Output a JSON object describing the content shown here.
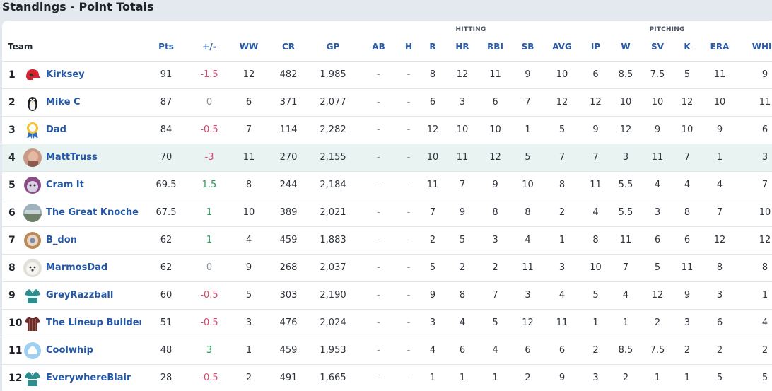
{
  "page": {
    "title": "Standings - Point Totals"
  },
  "groups": {
    "hitting": "HITTING",
    "pitching": "PITCHING"
  },
  "columns": [
    "Team",
    "Pts",
    "+/-",
    "WW",
    "CR",
    "GP",
    "AB",
    "H",
    "R",
    "HR",
    "RBI",
    "SB",
    "AVG",
    "IP",
    "W",
    "SV",
    "K",
    "ERA",
    "WHIP"
  ],
  "rows": [
    {
      "rank": "1",
      "team": "Kirksey",
      "icon": "red-helmet-icon",
      "pts": "91",
      "pm": "-1.5",
      "ww": "12",
      "cr": "482",
      "gp": "1,985",
      "ab": "-",
      "h": "-",
      "r": "8",
      "hr": "12",
      "rbi": "11",
      "sb": "9",
      "avg": "10",
      "ip": "6",
      "w": "8.5",
      "sv": "7.5",
      "k": "5",
      "era": "11",
      "whip": "9"
    },
    {
      "rank": "2",
      "team": "Mike C",
      "icon": "penguin-icon",
      "pts": "87",
      "pm": "0",
      "ww": "6",
      "cr": "371",
      "gp": "2,077",
      "ab": "-",
      "h": "-",
      "r": "6",
      "hr": "3",
      "rbi": "6",
      "sb": "7",
      "avg": "12",
      "ip": "12",
      "w": "10",
      "sv": "10",
      "k": "12",
      "era": "10",
      "whip": "11"
    },
    {
      "rank": "3",
      "team": "Dad",
      "icon": "ribbon-award-icon",
      "pts": "84",
      "pm": "-0.5",
      "ww": "7",
      "cr": "114",
      "gp": "2,282",
      "ab": "-",
      "h": "-",
      "r": "12",
      "hr": "10",
      "rbi": "10",
      "sb": "1",
      "avg": "5",
      "ip": "9",
      "w": "12",
      "sv": "9",
      "k": "10",
      "era": "9",
      "whip": "6"
    },
    {
      "rank": "4",
      "team": "MattTruss",
      "icon": "person-photo-icon",
      "pts": "70",
      "pm": "-3",
      "ww": "11",
      "cr": "270",
      "gp": "2,155",
      "ab": "-",
      "h": "-",
      "r": "10",
      "hr": "11",
      "rbi": "12",
      "sb": "5",
      "avg": "7",
      "ip": "7",
      "w": "3",
      "sv": "11",
      "k": "7",
      "era": "1",
      "whip": "3"
    },
    {
      "rank": "5",
      "team": "Cram It",
      "icon": "purple-ball-icon",
      "pts": "69.5",
      "pm": "1.5",
      "ww": "8",
      "cr": "244",
      "gp": "2,184",
      "ab": "-",
      "h": "-",
      "r": "11",
      "hr": "7",
      "rbi": "9",
      "sb": "10",
      "avg": "8",
      "ip": "11",
      "w": "5.5",
      "sv": "4",
      "k": "4",
      "era": "4",
      "whip": "7"
    },
    {
      "rank": "6",
      "team": "The Great Knoche",
      "icon": "landscape-photo-icon",
      "pts": "67.5",
      "pm": "1",
      "ww": "10",
      "cr": "389",
      "gp": "2,021",
      "ab": "-",
      "h": "-",
      "r": "7",
      "hr": "9",
      "rbi": "8",
      "sb": "8",
      "avg": "2",
      "ip": "4",
      "w": "5.5",
      "sv": "3",
      "k": "8",
      "era": "7",
      "whip": "10"
    },
    {
      "rank": "7",
      "team": "B_don",
      "icon": "donut-icon",
      "pts": "62",
      "pm": "1",
      "ww": "4",
      "cr": "459",
      "gp": "1,883",
      "ab": "-",
      "h": "-",
      "r": "2",
      "hr": "5",
      "rbi": "3",
      "sb": "4",
      "avg": "1",
      "ip": "8",
      "w": "11",
      "sv": "6",
      "k": "6",
      "era": "12",
      "whip": "12"
    },
    {
      "rank": "8",
      "team": "MarmosDad",
      "icon": "dog-photo-icon",
      "pts": "62",
      "pm": "0",
      "ww": "9",
      "cr": "268",
      "gp": "2,037",
      "ab": "-",
      "h": "-",
      "r": "5",
      "hr": "2",
      "rbi": "2",
      "sb": "11",
      "avg": "3",
      "ip": "10",
      "w": "7",
      "sv": "5",
      "k": "11",
      "era": "8",
      "whip": "8"
    },
    {
      "rank": "9",
      "team": "GreyRazzball",
      "icon": "teal-jersey-icon",
      "pts": "60",
      "pm": "-0.5",
      "ww": "5",
      "cr": "303",
      "gp": "2,190",
      "ab": "-",
      "h": "-",
      "r": "9",
      "hr": "8",
      "rbi": "7",
      "sb": "3",
      "avg": "4",
      "ip": "5",
      "w": "4",
      "sv": "12",
      "k": "9",
      "era": "3",
      "whip": "1"
    },
    {
      "rank": "10",
      "team": "The Lineup Builder",
      "icon": "maroon-jersey-icon",
      "pts": "51",
      "pm": "-0.5",
      "ww": "3",
      "cr": "476",
      "gp": "2,024",
      "ab": "-",
      "h": "-",
      "r": "3",
      "hr": "4",
      "rbi": "5",
      "sb": "12",
      "avg": "11",
      "ip": "1",
      "w": "1",
      "sv": "2",
      "k": "3",
      "era": "6",
      "whip": "4"
    },
    {
      "rank": "11",
      "team": "Coolwhip",
      "icon": "whipped-cream-icon",
      "pts": "48",
      "pm": "3",
      "ww": "1",
      "cr": "459",
      "gp": "1,953",
      "ab": "-",
      "h": "-",
      "r": "4",
      "hr": "6",
      "rbi": "4",
      "sb": "6",
      "avg": "6",
      "ip": "2",
      "w": "8.5",
      "sv": "7.5",
      "k": "2",
      "era": "2",
      "whip": "2"
    },
    {
      "rank": "12",
      "team": "EverywhereBlair",
      "icon": "teal-jersey-icon",
      "pts": "28",
      "pm": "-0.5",
      "ww": "2",
      "cr": "491",
      "gp": "1,665",
      "ab": "-",
      "h": "-",
      "r": "1",
      "hr": "1",
      "rbi": "1",
      "sb": "2",
      "avg": "9",
      "ip": "3",
      "w": "2",
      "sv": "1",
      "k": "1",
      "era": "5",
      "whip": "5"
    }
  ],
  "colors": {
    "highlight_row": "#e8f3f2",
    "team_link": "#2557a7",
    "negative": "#d9466b",
    "positive": "#239a5a",
    "neutral": "#8b929c"
  },
  "highlighted_rank": "4"
}
